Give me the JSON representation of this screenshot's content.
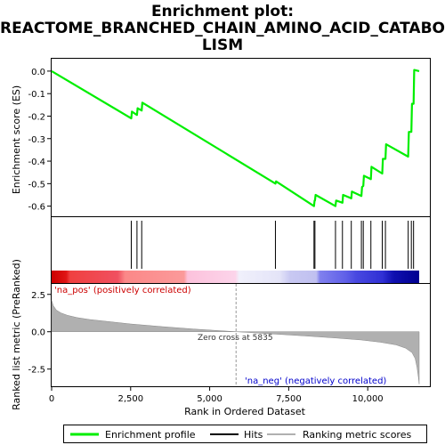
{
  "title_lines": [
    "Enrichment plot:",
    "REACTOME_BRANCHED_CHAIN_AMINO_ACID_CATABO",
    "LISM"
  ],
  "chart_data": [
    {
      "type": "line",
      "panel": "enrichment-score",
      "ylabel": "Enrichment score (ES)",
      "xlim": [
        0,
        11628
      ],
      "ylim": [
        -0.645,
        0.055
      ],
      "yticks": [
        0.0,
        -0.1,
        -0.2,
        -0.3,
        -0.4,
        -0.5,
        -0.6
      ],
      "ytick_labels": [
        "0.0",
        "-0.1",
        "-0.2",
        "-0.3",
        "-0.4",
        "-0.5",
        "-0.6"
      ],
      "grid": false,
      "series": [
        {
          "name": "Enrichment profile",
          "color": "#00ee00",
          "x": [
            0,
            2520,
            2540,
            2700,
            2720,
            2850,
            2870,
            7080,
            7100,
            8300,
            8320,
            8330,
            8350,
            8980,
            9000,
            9200,
            9220,
            9480,
            9500,
            9800,
            9820,
            9860,
            9880,
            10100,
            10120,
            10460,
            10480,
            10560,
            10580,
            11280,
            11300,
            11380,
            11400,
            11450,
            11470,
            11628
          ],
          "y": [
            0.0,
            -0.21,
            -0.18,
            -0.195,
            -0.165,
            -0.175,
            -0.14,
            -0.5,
            -0.49,
            -0.6,
            -0.575,
            -0.575,
            -0.55,
            -0.6,
            -0.575,
            -0.585,
            -0.55,
            -0.565,
            -0.535,
            -0.555,
            -0.515,
            -0.51,
            -0.465,
            -0.48,
            -0.425,
            -0.455,
            -0.39,
            -0.39,
            -0.325,
            -0.38,
            -0.27,
            -0.27,
            -0.145,
            -0.145,
            0.005,
            0.0
          ]
        }
      ]
    },
    {
      "type": "hits",
      "panel": "hits",
      "name": "Hits",
      "x": [
        2520,
        2700,
        2850,
        7080,
        8300,
        8330,
        8980,
        9200,
        9480,
        9800,
        9860,
        10100,
        10460,
        10560,
        11280,
        11380,
        11450
      ]
    },
    {
      "type": "area",
      "panel": "ranked-list-metric",
      "name": "Ranking metric scores",
      "xlabel": "Rank in Ordered Dataset",
      "ylabel": "Ranked list metric (PreRanked)",
      "xlim": [
        0,
        11628
      ],
      "ylim": [
        -3.65,
        3.2
      ],
      "xticks": [
        0,
        2500,
        5000,
        7500,
        10000
      ],
      "xtick_labels": [
        "0",
        "2,500",
        "5,000",
        "7,500",
        "10,000"
      ],
      "yticks": [
        2.5,
        0.0,
        -2.5
      ],
      "ytick_labels": [
        "2.5",
        "0.0",
        "-2.5"
      ],
      "x": [
        0,
        50,
        150,
        300,
        500,
        800,
        1200,
        1800,
        2500,
        3500,
        4500,
        5835,
        7000,
        8000,
        9000,
        9800,
        10400,
        10900,
        11200,
        11400,
        11500,
        11560,
        11600,
        11628
      ],
      "y": [
        2.1,
        1.75,
        1.45,
        1.25,
        1.1,
        0.95,
        0.82,
        0.68,
        0.52,
        0.34,
        0.18,
        0.0,
        -0.15,
        -0.28,
        -0.42,
        -0.55,
        -0.7,
        -0.88,
        -1.1,
        -1.4,
        -1.8,
        -2.4,
        -3.0,
        -3.5
      ],
      "fill_color": "#b0b0b0",
      "zero_cross_x": 5835,
      "annotations": {
        "pos": "'na_pos' (positively correlated)",
        "neg": "'na_neg' (negatively correlated)",
        "zero": "Zero cross at 5835"
      },
      "annotation_colors": {
        "pos": "#cc0000",
        "neg": "#0000cc"
      }
    }
  ],
  "legend": {
    "items": [
      {
        "label": "Enrichment profile",
        "color": "#00ee00"
      },
      {
        "label": "Hits",
        "color": "#000000"
      },
      {
        "label": "Ranking metric scores",
        "color": "#b0b0b0"
      }
    ]
  }
}
